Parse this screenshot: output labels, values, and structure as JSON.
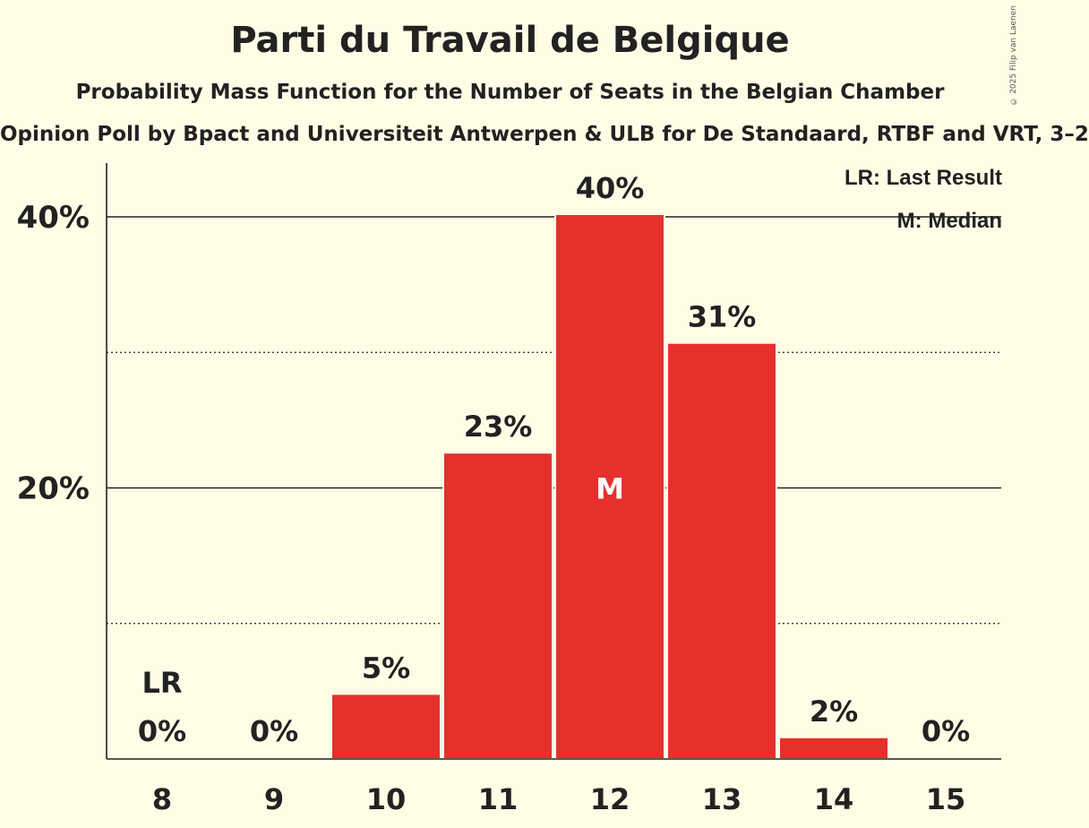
{
  "title": "Parti du Travail de Belgique",
  "subtitle": "Probability Mass Function for the Number of Seats in the Belgian Chamber",
  "poll_line": "Opinion Poll by Bpact and Universiteit Antwerpen & ULB for De Standaard, RTBF and VRT, 3–2",
  "copyright": "© 2025 Filip van Laenen",
  "legend": {
    "last_result": "LR: Last Result",
    "median": "M: Median"
  },
  "colors": {
    "background": "#fffde6",
    "bar": "#e5302c",
    "text": "#222222"
  },
  "chart_data": {
    "type": "bar",
    "categories": [
      "8",
      "9",
      "10",
      "11",
      "12",
      "13",
      "14",
      "15"
    ],
    "values": [
      0,
      0,
      4.8,
      22.6,
      40.2,
      30.7,
      1.6,
      0
    ],
    "value_labels": [
      "0%",
      "0%",
      "5%",
      "23%",
      "40%",
      "31%",
      "2%",
      "0%"
    ],
    "ylim": [
      0,
      44
    ],
    "yticks": [
      {
        "value": 20,
        "label": "20%",
        "style": "solid"
      },
      {
        "value": 40,
        "label": "40%",
        "style": "solid"
      }
    ],
    "minor_gridlines": [
      10,
      30
    ],
    "last_result_category": "8",
    "last_result_label": "LR",
    "median_category": "12",
    "median_label": "M"
  }
}
